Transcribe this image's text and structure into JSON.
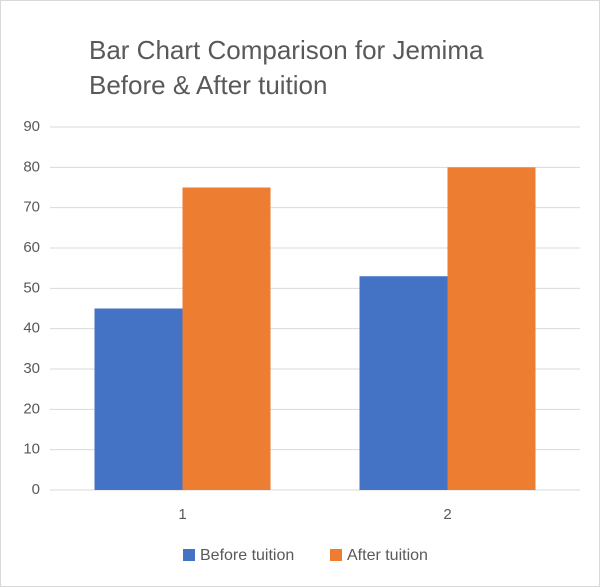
{
  "chart_data": {
    "type": "bar",
    "title": [
      "Bar Chart Comparison for Jemima",
      "Before & After tuition"
    ],
    "categories": [
      "1",
      "2"
    ],
    "series": [
      {
        "name": "Before tuition",
        "color": "#4472c4",
        "values": [
          45,
          53
        ]
      },
      {
        "name": "After tuition",
        "color": "#ed7d31",
        "values": [
          75,
          80
        ]
      }
    ],
    "ylim": [
      0,
      90
    ],
    "yticks": [
      0,
      10,
      20,
      30,
      40,
      50,
      60,
      70,
      80,
      90
    ],
    "grid": true,
    "legend": "bottom"
  }
}
